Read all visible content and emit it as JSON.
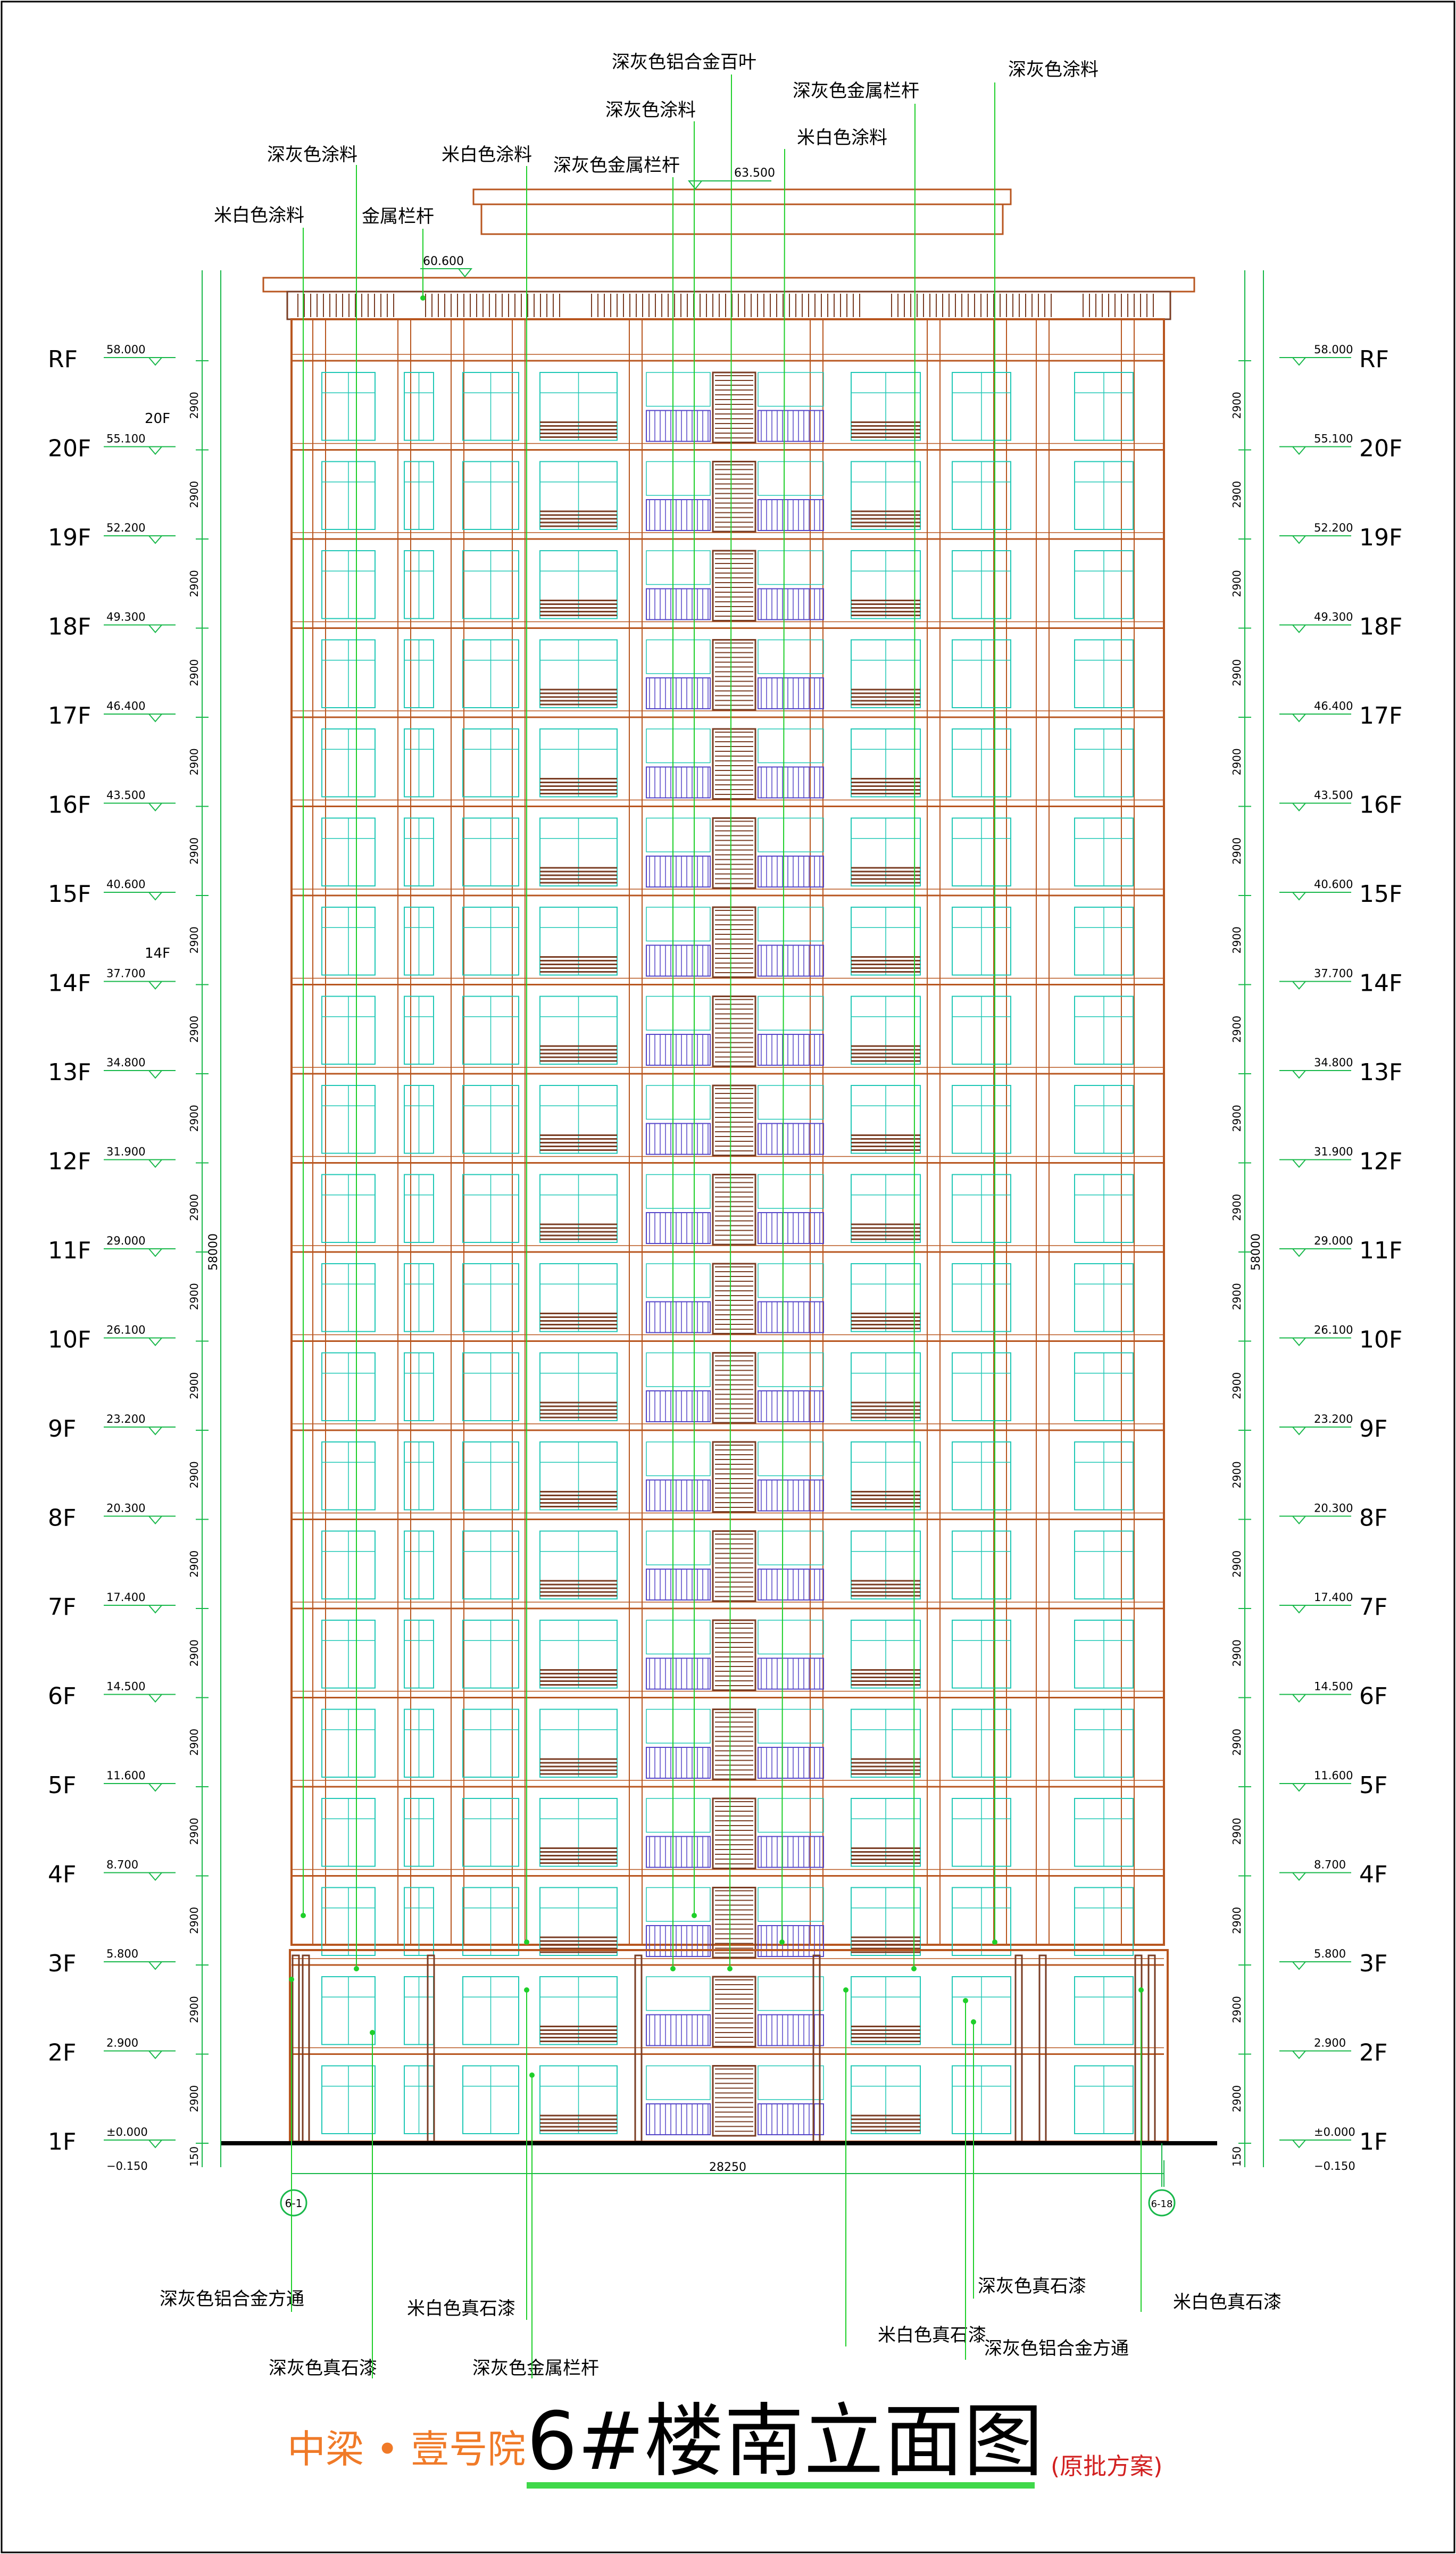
{
  "floors": [
    {
      "label": "1F",
      "elevation": "±0.000"
    },
    {
      "label": "2F",
      "elevation": "2.900"
    },
    {
      "label": "3F",
      "elevation": "5.800"
    },
    {
      "label": "4F",
      "elevation": "8.700"
    },
    {
      "label": "5F",
      "elevation": "11.600"
    },
    {
      "label": "6F",
      "elevation": "14.500"
    },
    {
      "label": "7F",
      "elevation": "17.400"
    },
    {
      "label": "8F",
      "elevation": "20.300"
    },
    {
      "label": "9F",
      "elevation": "23.200"
    },
    {
      "label": "10F",
      "elevation": "26.100"
    },
    {
      "label": "11F",
      "elevation": "29.000"
    },
    {
      "label": "12F",
      "elevation": "31.900"
    },
    {
      "label": "13F",
      "elevation": "34.800"
    },
    {
      "label": "14F",
      "elevation": "37.700"
    },
    {
      "label": "15F",
      "elevation": "40.600"
    },
    {
      "label": "16F",
      "elevation": "43.500"
    },
    {
      "label": "17F",
      "elevation": "46.400"
    },
    {
      "label": "18F",
      "elevation": "49.300"
    },
    {
      "label": "19F",
      "elevation": "52.200"
    },
    {
      "label": "20F",
      "elevation": "55.100"
    },
    {
      "label": "RF",
      "elevation": "58.000"
    }
  ],
  "floor_height": "2900",
  "total_height": "58000",
  "base_offset": "150",
  "ground_elevation": "−0.150",
  "width_dimension": "28250",
  "parapet_elevation": "60.600",
  "roof_elevation": "63.500",
  "inline_tags": {
    "f20": "20F",
    "f14": "14F"
  },
  "axes": {
    "left": "6-1",
    "right": "6-18"
  },
  "top_labels": [
    "深灰色铝合金百叶",
    "深灰色金属栏杆",
    "深灰色涂料",
    "深灰色涂料",
    "米白色涂料",
    "深灰色涂料",
    "米白色涂料",
    "深灰色金属栏杆",
    "米白色涂料",
    "金属栏杆"
  ],
  "bottom_labels": [
    "深灰色铝合金方通",
    "米白色真石漆",
    "深灰色真石漆",
    "深灰色金属栏杆",
    "深灰色真石漆",
    "米白色真石漆",
    "深灰色铝合金方通",
    "米白色真石漆"
  ],
  "title": {
    "project": "中梁 • 壹号院",
    "drawing": "6#楼南立面图",
    "note": "(原批方案)"
  },
  "colors": {
    "outline": "#b8561f",
    "band": "#7a3d24",
    "glass": "#20c8b6",
    "railing": "#5546c8",
    "leader": "#1fcf2a",
    "dimension": "#18b84a",
    "title_orange": "#f07a28",
    "title_underline": "#3fd84a",
    "note_red": "#d22020"
  }
}
